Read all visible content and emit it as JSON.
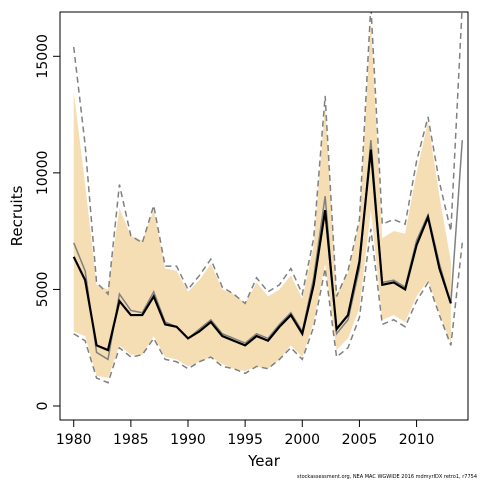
{
  "chart_data": {
    "type": "line",
    "xlabel": "Year",
    "ylabel": "Recruits",
    "xlim": [
      1978.8,
      2014.5
    ],
    "ylim": [
      -600,
      16900
    ],
    "x_ticks": [
      1980,
      1985,
      1990,
      1995,
      2000,
      2005,
      2010
    ],
    "x_tick_labels": [
      "1980",
      "1985",
      "1990",
      "1995",
      "2000",
      "2005",
      "2010"
    ],
    "y_ticks": [
      0,
      5000,
      10000,
      15000
    ],
    "y_tick_labels": [
      "0",
      "5000",
      "10000",
      "15000"
    ],
    "credit": "stockassessment.org, NEA MAC WGWIDE 2016 mdmyrIDX retro1, r7754",
    "colors": {
      "band": "#F5DEB3",
      "estimate": "#000000",
      "retro": "#808080",
      "axis": "#000000"
    },
    "x": [
      1980,
      1981,
      1982,
      1983,
      1984,
      1985,
      1986,
      1987,
      1988,
      1989,
      1990,
      1991,
      1992,
      1993,
      1994,
      1995,
      1996,
      1997,
      1998,
      1999,
      2000,
      2001,
      2002,
      2003,
      2004,
      2005,
      2006,
      2007,
      2008,
      2009,
      2010,
      2011,
      2012,
      2013,
      2014
    ],
    "band_upper": [
      13500,
      9500,
      5200,
      5000,
      8500,
      7300,
      7100,
      8400,
      5900,
      5800,
      4900,
      5400,
      6100,
      5000,
      4800,
      4400,
      5300,
      4700,
      5000,
      5600,
      4600,
      6900,
      12900,
      4800,
      5700,
      7900,
      16500,
      7200,
      7500,
      7400,
      10000,
      12200,
      9000,
      6200,
      null
    ],
    "band_lower": [
      3200,
      3000,
      1300,
      1200,
      2600,
      2200,
      2200,
      3000,
      2100,
      2000,
      1700,
      1900,
      2100,
      1800,
      1600,
      1500,
      1700,
      1600,
      2000,
      2600,
      2100,
      3600,
      6100,
      2400,
      2900,
      4200,
      8400,
      3700,
      3900,
      3600,
      4700,
      5400,
      4000,
      2700,
      null
    ],
    "series": [
      {
        "values": [
          6400,
          5400,
          2600,
          2400,
          4500,
          3900,
          3900,
          4700,
          3500,
          3400,
          2900,
          3200,
          3600,
          3000,
          2800,
          2600,
          3000,
          2800,
          3400,
          3900,
          3100,
          5200,
          8400,
          3300,
          3900,
          6200,
          11000,
          5200,
          5300,
          5000,
          6900,
          8100,
          5900,
          4400,
          null
        ]
      }
    ],
    "retro_series": {
      "solid": [
        7000,
        5800,
        2300,
        2000,
        4800,
        4100,
        4000,
        4900,
        3600,
        3400,
        2900,
        3300,
        3700,
        3100,
        2900,
        2700,
        3100,
        2900,
        3500,
        4000,
        3200,
        5500,
        9000,
        3100,
        3700,
        5900,
        11400,
        5300,
        5400,
        5100,
        7100,
        8200,
        6100,
        4400,
        11400
      ],
      "dashed_upper": [
        15400,
        11200,
        5300,
        4800,
        9500,
        7300,
        7000,
        8600,
        6000,
        6000,
        5000,
        5600,
        6300,
        5100,
        4800,
        4400,
        5500,
        4900,
        5200,
        5900,
        4800,
        7200,
        13300,
        4700,
        5800,
        8000,
        17200,
        7800,
        8000,
        7800,
        10500,
        12400,
        9600,
        7500,
        17200
      ],
      "dashed_lower": [
        3100,
        2800,
        1200,
        1000,
        2500,
        2100,
        2200,
        2900,
        2000,
        1900,
        1600,
        1900,
        2100,
        1700,
        1600,
        1400,
        1700,
        1600,
        2000,
        2500,
        2000,
        3400,
        5900,
        2100,
        2500,
        3800,
        7600,
        3500,
        3700,
        3400,
        4500,
        5300,
        3900,
        2600,
        7000
      ]
    }
  }
}
